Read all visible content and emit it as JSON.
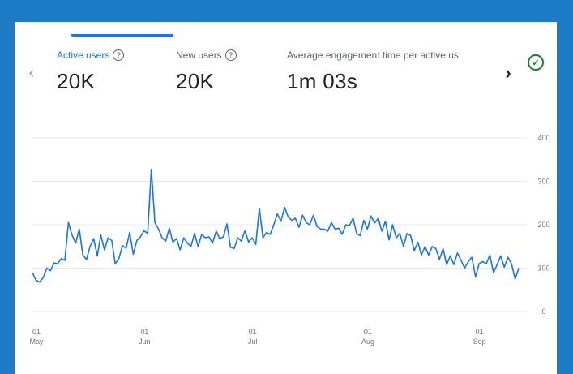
{
  "metrics": [
    {
      "label": "Active users",
      "value": "20K",
      "active": true
    },
    {
      "label": "New users",
      "value": "20K",
      "active": false
    },
    {
      "label": "Average engagement time per active us",
      "value": "1m 03s",
      "active": false
    }
  ],
  "icons": {
    "prev": "chevron-left-icon",
    "next": "chevron-right-icon",
    "status": "check-circle-icon",
    "help": "help-circle-icon"
  },
  "colors": {
    "line": "#1a73e8",
    "background": "#1d7ac4",
    "grid": "#e8eaed",
    "check": "#188038"
  },
  "chart_data": {
    "type": "line",
    "ylim": [
      0,
      400
    ],
    "yticks": [
      "400",
      "300",
      "200",
      "100",
      "0"
    ],
    "xticks": [
      {
        "day": "01",
        "month": "May"
      },
      {
        "day": "01",
        "month": "Jun"
      },
      {
        "day": "01",
        "month": "Jul"
      },
      {
        "day": "01",
        "month": "Aug"
      },
      {
        "day": "01",
        "month": "Sep"
      }
    ],
    "series": [
      {
        "values": [
          90,
          72,
          68,
          78,
          100,
          94,
          112,
          110,
          122,
          118,
          205,
          176,
          158,
          190,
          130,
          120,
          150,
          168,
          128,
          176,
          142,
          170,
          164,
          110,
          122,
          152,
          146,
          182,
          132,
          164,
          172,
          186,
          180,
          328,
          205,
          190,
          170,
          162,
          192,
          160,
          168,
          142,
          170,
          158,
          150,
          180,
          150,
          178,
          170,
          172,
          158,
          185,
          168,
          172,
          202,
          148,
          145,
          170,
          162,
          186,
          160,
          170,
          155,
          238,
          170,
          182,
          178,
          200,
          225,
          208,
          240,
          218,
          210,
          215,
          194,
          222,
          205,
          200,
          222,
          196,
          190,
          190,
          185,
          205,
          190,
          192,
          178,
          200,
          198,
          215,
          180,
          175,
          210,
          190,
          220,
          204,
          215,
          185,
          208,
          165,
          200,
          170,
          180,
          150,
          180,
          175,
          140,
          160,
          130,
          150,
          130,
          150,
          145,
          120,
          145,
          108,
          128,
          108,
          135,
          118,
          100,
          115,
          125,
          80,
          110,
          115,
          110,
          130,
          90,
          108,
          128,
          102,
          125,
          110,
          75,
          100
        ]
      }
    ]
  }
}
